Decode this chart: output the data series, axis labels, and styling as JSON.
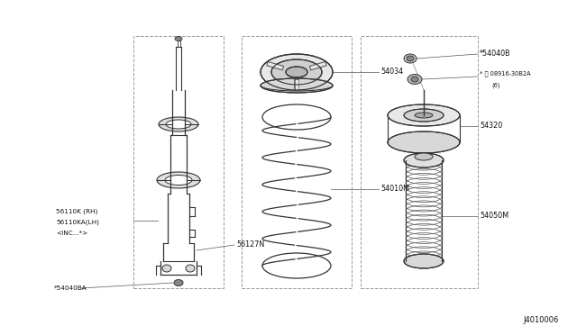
{
  "bg_color": "#ffffff",
  "line_color": "#333333",
  "dashed_box_color": "#999999",
  "label_color": "#111111",
  "title_bottom_right": "J4010006",
  "figsize": [
    6.4,
    3.72
  ],
  "dpi": 100,
  "xlim": [
    0,
    640
  ],
  "ylim": [
    0,
    372
  ]
}
